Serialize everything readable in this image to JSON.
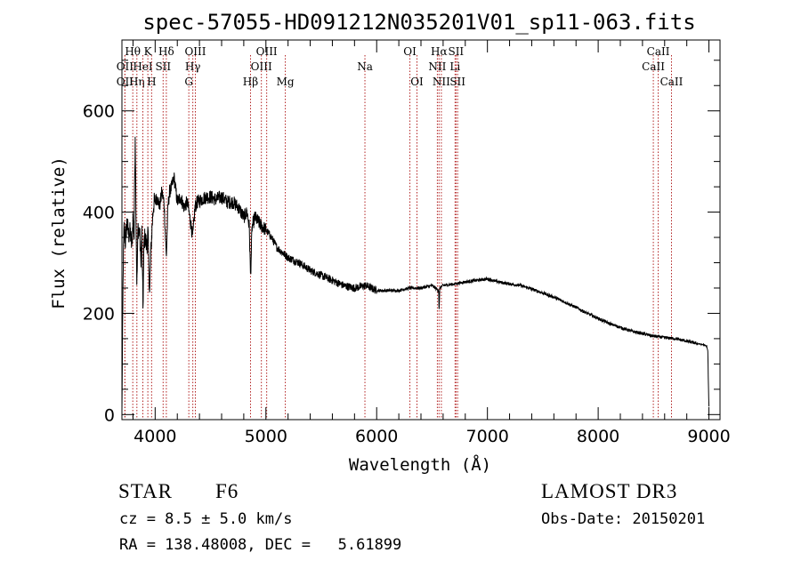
{
  "chart_data": {
    "type": "line",
    "title": "spec-57055-HD091212N035201V01_sp11-063.fits",
    "xlabel": "Wavelength (Å)",
    "ylabel": "Flux (relative)",
    "xlim": [
      3700,
      9100
    ],
    "ylim": [
      -10,
      740
    ],
    "xticks": [
      4000,
      5000,
      6000,
      7000,
      8000,
      9000
    ],
    "yticks": [
      0,
      200,
      400,
      600
    ],
    "series": [
      {
        "name": "spectrum",
        "x": [
          3700,
          3705,
          3712,
          3720,
          3730,
          3745,
          3760,
          3775,
          3790,
          3800,
          3810,
          3820,
          3828,
          3835,
          3845,
          3860,
          3870,
          3880,
          3890,
          3900,
          3910,
          3925,
          3935,
          3950,
          3965,
          3975,
          3985,
          4000,
          4020,
          4040,
          4060,
          4080,
          4101,
          4115,
          4130,
          4150,
          4170,
          4200,
          4230,
          4260,
          4290,
          4320,
          4340,
          4360,
          4380,
          4420,
          4460,
          4500,
          4550,
          4600,
          4650,
          4700,
          4750,
          4800,
          4830,
          4850,
          4861,
          4875,
          4900,
          4950,
          5000,
          5050,
          5100,
          5150,
          5200,
          5300,
          5400,
          5500,
          5600,
          5700,
          5800,
          5900,
          6000,
          6100,
          6200,
          6300,
          6400,
          6500,
          6560,
          6563,
          6570,
          6600,
          6700,
          6800,
          6900,
          7000,
          7100,
          7200,
          7300,
          7400,
          7500,
          7600,
          7700,
          7800,
          7900,
          8000,
          8100,
          8200,
          8300,
          8400,
          8500,
          8600,
          8700,
          8800,
          8900,
          8950,
          8980,
          8990,
          8995,
          9000
        ],
        "y": [
          0,
          130,
          300,
          370,
          340,
          380,
          355,
          360,
          330,
          390,
          350,
          560,
          380,
          250,
          370,
          360,
          300,
          360,
          210,
          345,
          350,
          330,
          360,
          240,
          340,
          380,
          415,
          420,
          430,
          410,
          440,
          420,
          310,
          410,
          440,
          450,
          470,
          420,
          430,
          410,
          420,
          380,
          350,
          410,
          420,
          425,
          430,
          430,
          425,
          430,
          420,
          420,
          410,
          390,
          400,
          370,
          270,
          370,
          390,
          375,
          365,
          350,
          330,
          320,
          310,
          300,
          285,
          275,
          265,
          255,
          250,
          255,
          245,
          245,
          245,
          250,
          250,
          255,
          245,
          200,
          250,
          255,
          258,
          262,
          265,
          268,
          262,
          258,
          255,
          248,
          240,
          232,
          222,
          212,
          200,
          190,
          180,
          172,
          165,
          160,
          155,
          152,
          150,
          145,
          140,
          138,
          135,
          125,
          60,
          15
        ]
      }
    ],
    "spectral_lines": [
      {
        "name": "OII",
        "wavelength": 3727,
        "row": 2
      },
      {
        "name": "Hθ",
        "wavelength": 3798,
        "row": 1
      },
      {
        "name": "OII",
        "wavelength": 3727,
        "row": 3
      },
      {
        "name": "Hη",
        "wavelength": 3835,
        "row": 3
      },
      {
        "name": "HeI",
        "wavelength": 3889,
        "row": 2
      },
      {
        "name": "K",
        "wavelength": 3934,
        "row": 1
      },
      {
        "name": "H",
        "wavelength": 3968,
        "row": 3
      },
      {
        "name": "SII",
        "wavelength": 4072,
        "row": 2
      },
      {
        "name": "Hδ",
        "wavelength": 4101,
        "row": 1
      },
      {
        "name": "G",
        "wavelength": 4304,
        "row": 3
      },
      {
        "name": "OIII",
        "wavelength": 4363,
        "row": 1
      },
      {
        "name": "Hγ",
        "wavelength": 4340,
        "row": 2
      },
      {
        "name": "Hβ",
        "wavelength": 4861,
        "row": 3
      },
      {
        "name": "OIII",
        "wavelength": 5007,
        "row": 1
      },
      {
        "name": "OIII",
        "wavelength": 4959,
        "row": 2
      },
      {
        "name": "Mg",
        "wavelength": 5175,
        "row": 3
      },
      {
        "name": "Na",
        "wavelength": 5894,
        "row": 2
      },
      {
        "name": "OI",
        "wavelength": 6300,
        "row": 1
      },
      {
        "name": "OI",
        "wavelength": 6364,
        "row": 3
      },
      {
        "name": "Hα",
        "wavelength": 6563,
        "row": 1
      },
      {
        "name": "NII",
        "wavelength": 6548,
        "row": 2
      },
      {
        "name": "NII",
        "wavelength": 6584,
        "row": 3
      },
      {
        "name": "SII",
        "wavelength": 6716,
        "row": 1
      },
      {
        "name": "Li",
        "wavelength": 6708,
        "row": 2
      },
      {
        "name": "SII",
        "wavelength": 6731,
        "row": 3
      },
      {
        "name": "CaII",
        "wavelength": 8542,
        "row": 1
      },
      {
        "name": "CaII",
        "wavelength": 8498,
        "row": 2
      },
      {
        "name": "CaII",
        "wavelength": 8662,
        "row": 3
      }
    ]
  },
  "info": {
    "class_label": "STAR",
    "subclass": "F6",
    "survey": "LAMOST DR3",
    "redshift": "cz = 8.5 ± 5.0 km/s",
    "obs_date": "Obs-Date: 20150201",
    "coords": "RA = 138.48008, DEC =   5.61899"
  }
}
